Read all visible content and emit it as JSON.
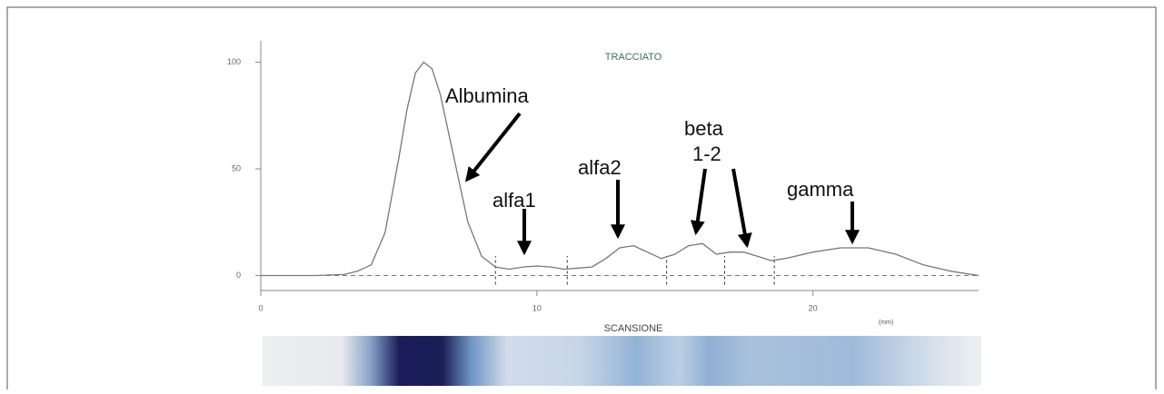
{
  "chart_data": {
    "type": "line",
    "title": "TRACCIATO",
    "subtitle": "SCANSIONE",
    "x_label": "(mm)",
    "x": [
      0,
      2,
      3,
      3.5,
      4,
      4.5,
      5,
      5.3,
      5.6,
      5.9,
      6.2,
      6.5,
      7,
      7.5,
      8,
      8.5,
      9,
      9.5,
      10,
      10.5,
      11,
      12,
      12.5,
      13,
      13.5,
      14,
      14.5,
      15,
      15.5,
      16,
      16.5,
      17,
      17.5,
      18,
      18.5,
      19,
      20,
      21,
      22,
      23,
      24,
      25,
      26
    ],
    "values": [
      0,
      0,
      0.5,
      2,
      5,
      20,
      55,
      78,
      95,
      100,
      97,
      85,
      55,
      25,
      9,
      4,
      3,
      4,
      4.5,
      4,
      3,
      4,
      8,
      13,
      14,
      11,
      8,
      10,
      14,
      15,
      10,
      11,
      11,
      9,
      7,
      8,
      11,
      13,
      13,
      10,
      5,
      2,
      0
    ],
    "color": "#777777",
    "separators": [
      8.5,
      11.1,
      14.7,
      16.8,
      18.6
    ],
    "xlim": [
      0,
      26
    ],
    "xticks": [
      0,
      10,
      20
    ],
    "ylim": [
      -7,
      110
    ],
    "yticks": [
      0,
      50,
      100
    ],
    "annotations": [
      "Albumina",
      "alfa1",
      "alfa2",
      "beta",
      "1-2",
      "gamma"
    ]
  }
}
